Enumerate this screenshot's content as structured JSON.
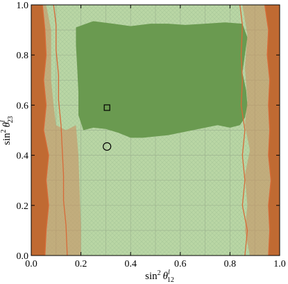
{
  "chart_data": {
    "type": "contour",
    "title": "",
    "xlabel": {
      "base": "sin",
      "sup": "2",
      "theta": "θ",
      "sub": "12",
      "lsup": "l"
    },
    "ylabel": {
      "base": "sin",
      "sup": "2",
      "theta": "θ",
      "sub": "23",
      "lsup": "l"
    },
    "xlim": [
      0.0,
      1.0
    ],
    "ylim": [
      0.0,
      1.0
    ],
    "xticks": [
      "0.0",
      "0.2",
      "0.4",
      "0.6",
      "0.8",
      "1.0"
    ],
    "yticks": [
      "0.0",
      "0.2",
      "0.4",
      "0.6",
      "0.8",
      "1.0"
    ],
    "xtick_values": [
      0.0,
      0.2,
      0.4,
      0.6,
      0.8,
      1.0
    ],
    "ytick_values": [
      0.0,
      0.2,
      0.4,
      0.6,
      0.8,
      1.0
    ],
    "grid": true,
    "colors": {
      "background": "#b9d6a5",
      "central_band": "#6a9a50",
      "orange_band": "#ca8c5c",
      "dark_orange_edge": "#c06a32",
      "contour_line": "#d86a38",
      "grid": "#9eb490",
      "hatch": "#a9c89a"
    },
    "regions": [
      {
        "id": "dark-green-band",
        "polygon": [
          [
            0.18,
            0.91
          ],
          [
            0.25,
            0.935
          ],
          [
            0.33,
            0.925
          ],
          [
            0.4,
            0.915
          ],
          [
            0.48,
            0.925
          ],
          [
            0.55,
            0.925
          ],
          [
            0.62,
            0.92
          ],
          [
            0.7,
            0.925
          ],
          [
            0.78,
            0.93
          ],
          [
            0.85,
            0.925
          ],
          [
            0.87,
            0.87
          ],
          [
            0.86,
            0.8
          ],
          [
            0.85,
            0.73
          ],
          [
            0.865,
            0.66
          ],
          [
            0.87,
            0.6
          ],
          [
            0.86,
            0.55
          ],
          [
            0.84,
            0.52
          ],
          [
            0.8,
            0.51
          ],
          [
            0.75,
            0.52
          ],
          [
            0.7,
            0.51
          ],
          [
            0.65,
            0.5
          ],
          [
            0.6,
            0.49
          ],
          [
            0.55,
            0.48
          ],
          [
            0.5,
            0.475
          ],
          [
            0.45,
            0.47
          ],
          [
            0.4,
            0.47
          ],
          [
            0.35,
            0.49
          ],
          [
            0.3,
            0.505
          ],
          [
            0.25,
            0.51
          ],
          [
            0.21,
            0.5
          ],
          [
            0.19,
            0.56
          ],
          [
            0.19,
            0.65
          ],
          [
            0.185,
            0.75
          ],
          [
            0.18,
            0.84
          ]
        ]
      },
      {
        "id": "left-orange-band",
        "polygon": [
          [
            0.06,
            1.0
          ],
          [
            0.08,
            0.9
          ],
          [
            0.08,
            0.8
          ],
          [
            0.08,
            0.7
          ],
          [
            0.09,
            0.6
          ],
          [
            0.1,
            0.52
          ],
          [
            0.14,
            0.5
          ],
          [
            0.18,
            0.52
          ],
          [
            0.19,
            0.4
          ],
          [
            0.195,
            0.25
          ],
          [
            0.2,
            0.12
          ],
          [
            0.2,
            0.0
          ],
          [
            0.0,
            0.0
          ],
          [
            0.0,
            1.0
          ]
        ]
      },
      {
        "id": "right-orange-band",
        "polygon": [
          [
            0.85,
            1.0
          ],
          [
            0.87,
            0.88
          ],
          [
            0.86,
            0.75
          ],
          [
            0.87,
            0.62
          ],
          [
            0.86,
            0.52
          ],
          [
            0.88,
            0.42
          ],
          [
            0.86,
            0.32
          ],
          [
            0.87,
            0.2
          ],
          [
            0.86,
            0.1
          ],
          [
            0.88,
            0.0
          ],
          [
            1.0,
            0.0
          ],
          [
            1.0,
            1.0
          ]
        ]
      },
      {
        "id": "left-dark-orange-edge",
        "polygon": [
          [
            0.0,
            1.0
          ],
          [
            0.045,
            1.0
          ],
          [
            0.055,
            0.9
          ],
          [
            0.06,
            0.8
          ],
          [
            0.05,
            0.7
          ],
          [
            0.06,
            0.6
          ],
          [
            0.05,
            0.5
          ],
          [
            0.07,
            0.4
          ],
          [
            0.06,
            0.3
          ],
          [
            0.07,
            0.2
          ],
          [
            0.06,
            0.1
          ],
          [
            0.055,
            0.0
          ],
          [
            0.0,
            0.0
          ]
        ]
      },
      {
        "id": "right-dark-orange-edge",
        "polygon": [
          [
            0.94,
            1.0
          ],
          [
            0.955,
            0.9
          ],
          [
            0.95,
            0.8
          ],
          [
            0.96,
            0.7
          ],
          [
            0.955,
            0.6
          ],
          [
            0.96,
            0.5
          ],
          [
            0.955,
            0.4
          ],
          [
            0.965,
            0.3
          ],
          [
            0.955,
            0.2
          ],
          [
            0.96,
            0.1
          ],
          [
            0.955,
            0.0
          ],
          [
            1.0,
            0.0
          ],
          [
            1.0,
            1.0
          ]
        ]
      }
    ],
    "contour_lines": [
      {
        "id": "left-inner-line",
        "points": [
          [
            0.09,
            1.0
          ],
          [
            0.1,
            0.92
          ],
          [
            0.1,
            0.82
          ],
          [
            0.11,
            0.72
          ],
          [
            0.11,
            0.62
          ],
          [
            0.12,
            0.52
          ],
          [
            0.125,
            0.42
          ],
          [
            0.13,
            0.32
          ],
          [
            0.13,
            0.22
          ],
          [
            0.14,
            0.12
          ],
          [
            0.145,
            0.0
          ]
        ]
      },
      {
        "id": "left-outer-line",
        "points": [
          [
            0.045,
            1.0
          ],
          [
            0.055,
            0.9
          ],
          [
            0.06,
            0.8
          ],
          [
            0.05,
            0.7
          ],
          [
            0.06,
            0.6
          ],
          [
            0.05,
            0.5
          ],
          [
            0.07,
            0.4
          ],
          [
            0.06,
            0.3
          ],
          [
            0.07,
            0.2
          ],
          [
            0.06,
            0.1
          ],
          [
            0.055,
            0.0
          ]
        ]
      },
      {
        "id": "right-inner-line",
        "points": [
          [
            0.84,
            1.0
          ],
          [
            0.85,
            0.92
          ],
          [
            0.845,
            0.8
          ],
          [
            0.85,
            0.7
          ],
          [
            0.845,
            0.6
          ],
          [
            0.86,
            0.5
          ],
          [
            0.85,
            0.4
          ],
          [
            0.86,
            0.3
          ],
          [
            0.85,
            0.2
          ],
          [
            0.87,
            0.1
          ],
          [
            0.86,
            0.0
          ]
        ]
      },
      {
        "id": "right-outer-line",
        "points": [
          [
            0.94,
            1.0
          ],
          [
            0.955,
            0.9
          ],
          [
            0.95,
            0.8
          ],
          [
            0.96,
            0.7
          ],
          [
            0.955,
            0.6
          ],
          [
            0.96,
            0.5
          ],
          [
            0.955,
            0.4
          ],
          [
            0.965,
            0.3
          ],
          [
            0.955,
            0.2
          ],
          [
            0.96,
            0.1
          ],
          [
            0.955,
            0.0
          ]
        ]
      }
    ],
    "markers": [
      {
        "id": "square-marker",
        "shape": "square",
        "x": 0.305,
        "y": 0.59
      },
      {
        "id": "circle-marker",
        "shape": "circle",
        "x": 0.305,
        "y": 0.435
      }
    ]
  }
}
